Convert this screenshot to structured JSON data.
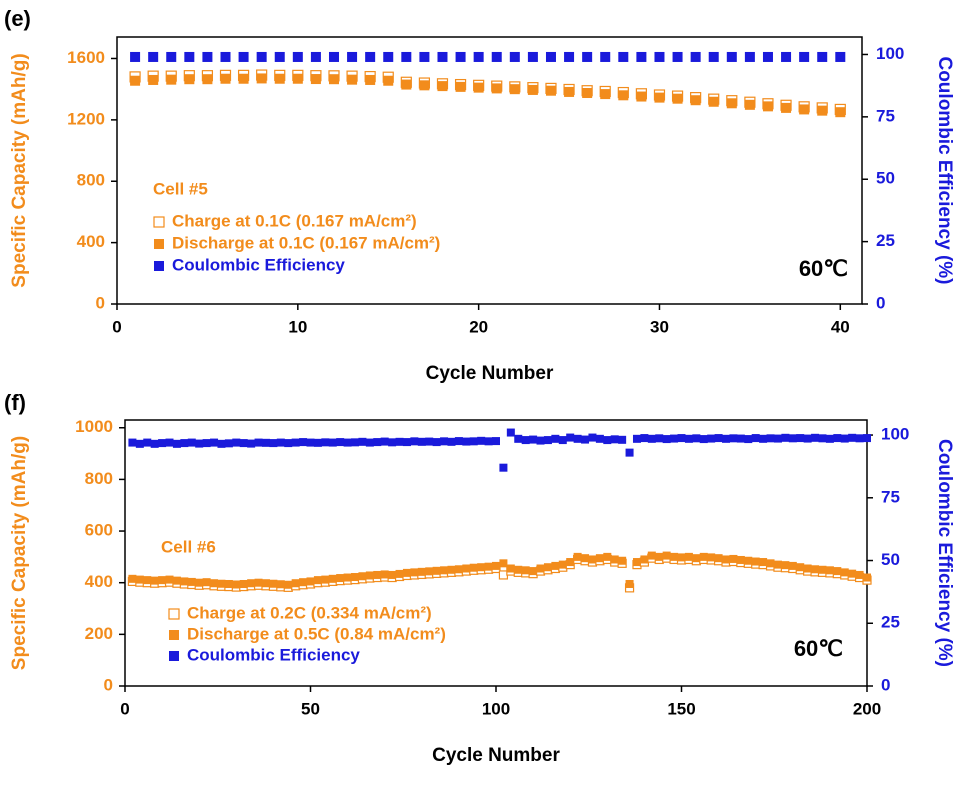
{
  "chart_data": [
    {
      "type": "scatter",
      "panel_label": "(e)",
      "annotation": "Cell #5",
      "temperature": "60℃",
      "xlabel": "Cycle Number",
      "ylabel": "Specific Capacity (mAh/g)",
      "y2label": "Coulombic Efficiency (%)",
      "xlim": [
        0,
        41.2
      ],
      "xticks": [
        0,
        10,
        20,
        30,
        40
      ],
      "ylim": [
        0,
        1740
      ],
      "yticks": [
        0,
        400,
        800,
        1200,
        1600
      ],
      "y2lim": [
        0,
        107
      ],
      "y2ticks": [
        0,
        25,
        50,
        75,
        100
      ],
      "legend": "lower left",
      "x": [
        1,
        2,
        3,
        4,
        5,
        6,
        7,
        8,
        9,
        10,
        11,
        12,
        13,
        14,
        15,
        16,
        17,
        18,
        19,
        20,
        21,
        22,
        23,
        24,
        25,
        26,
        27,
        28,
        29,
        30,
        31,
        32,
        33,
        34,
        35,
        36,
        37,
        38,
        39,
        40
      ],
      "series": [
        {
          "name": "Charge at 0.1C (0.167 mA/cm²)",
          "color": "#f28c1c",
          "marker": "open-square",
          "values": [
            1480,
            1485,
            1485,
            1488,
            1488,
            1490,
            1490,
            1492,
            1490,
            1490,
            1488,
            1487,
            1485,
            1482,
            1478,
            1445,
            1440,
            1435,
            1430,
            1425,
            1420,
            1415,
            1410,
            1405,
            1398,
            1390,
            1385,
            1378,
            1370,
            1362,
            1355,
            1345,
            1335,
            1325,
            1315,
            1305,
            1295,
            1285,
            1278,
            1268
          ]
        },
        {
          "name": "Discharge at 0.1C (0.167 mA/cm²)",
          "color": "#f28c1c",
          "marker": "square",
          "values": [
            1455,
            1460,
            1462,
            1465,
            1465,
            1468,
            1468,
            1470,
            1468,
            1468,
            1466,
            1465,
            1462,
            1460,
            1455,
            1430,
            1425,
            1420,
            1415,
            1410,
            1405,
            1400,
            1395,
            1390,
            1382,
            1375,
            1368,
            1360,
            1352,
            1345,
            1338,
            1328,
            1318,
            1308,
            1298,
            1288,
            1278,
            1268,
            1260,
            1250
          ]
        },
        {
          "name": "Coulombic Efficiency",
          "color": "#1a1adb",
          "marker": "square",
          "axis": "y2",
          "values": [
            99,
            99,
            99,
            99,
            99,
            99,
            99,
            99,
            99,
            99,
            99,
            99,
            99,
            99,
            99,
            99,
            99,
            99,
            99,
            99,
            99,
            99,
            99,
            99,
            99,
            99,
            99,
            99,
            99,
            99,
            99,
            99,
            99,
            99,
            99,
            99,
            99,
            99,
            99,
            99
          ]
        }
      ]
    },
    {
      "type": "scatter",
      "panel_label": "(f)",
      "annotation": "Cell #6",
      "temperature": "60℃",
      "xlabel": "Cycle Number",
      "ylabel": "Specific Capacity (mAh/g)",
      "y2label": "Coulombic Efficiency (%)",
      "xlim": [
        0,
        200
      ],
      "xticks": [
        0,
        50,
        100,
        150,
        200
      ],
      "ylim": [
        0,
        1030
      ],
      "yticks": [
        0,
        200,
        400,
        600,
        800,
        1000
      ],
      "y2lim": [
        0,
        106
      ],
      "y2ticks": [
        0,
        25,
        50,
        75,
        100
      ],
      "legend": "lower left",
      "x": [
        2,
        4,
        6,
        8,
        10,
        12,
        14,
        16,
        18,
        20,
        22,
        24,
        26,
        28,
        30,
        32,
        34,
        36,
        38,
        40,
        42,
        44,
        46,
        48,
        50,
        52,
        54,
        56,
        58,
        60,
        62,
        64,
        66,
        68,
        70,
        72,
        74,
        76,
        78,
        80,
        82,
        84,
        86,
        88,
        90,
        92,
        94,
        96,
        98,
        100,
        102,
        104,
        106,
        108,
        110,
        112,
        114,
        116,
        118,
        120,
        122,
        124,
        126,
        128,
        130,
        132,
        134,
        136,
        138,
        140,
        142,
        144,
        146,
        148,
        150,
        152,
        154,
        156,
        158,
        160,
        162,
        164,
        166,
        168,
        170,
        172,
        174,
        176,
        178,
        180,
        182,
        184,
        186,
        188,
        190,
        192,
        194,
        196,
        198,
        200
      ],
      "series": [
        {
          "name": "Charge at 0.2C (0.334 mA/cm²)",
          "color": "#f28c1c",
          "marker": "open-square",
          "values": [
            405,
            402,
            400,
            398,
            400,
            402,
            398,
            395,
            393,
            390,
            392,
            388,
            386,
            385,
            383,
            385,
            388,
            390,
            388,
            386,
            384,
            382,
            388,
            392,
            395,
            400,
            402,
            405,
            408,
            410,
            412,
            415,
            418,
            420,
            422,
            420,
            424,
            428,
            430,
            432,
            434,
            436,
            438,
            440,
            442,
            445,
            448,
            450,
            452,
            455,
            430,
            445,
            440,
            438,
            435,
            445,
            450,
            455,
            460,
            470,
            490,
            485,
            480,
            485,
            490,
            480,
            475,
            380,
            470,
            480,
            495,
            490,
            495,
            490,
            488,
            490,
            485,
            490,
            488,
            485,
            480,
            482,
            478,
            475,
            472,
            470,
            465,
            460,
            458,
            455,
            450,
            445,
            442,
            440,
            438,
            435,
            430,
            425,
            420,
            410
          ]
        },
        {
          "name": "Discharge at 0.5C (0.84 mA/cm²)",
          "color": "#f28c1c",
          "marker": "square",
          "values": [
            415,
            412,
            410,
            408,
            410,
            412,
            408,
            405,
            403,
            400,
            402,
            398,
            396,
            395,
            393,
            395,
            398,
            400,
            398,
            396,
            394,
            392,
            398,
            402,
            405,
            410,
            412,
            415,
            418,
            420,
            422,
            425,
            428,
            430,
            432,
            430,
            434,
            438,
            440,
            442,
            444,
            446,
            448,
            450,
            452,
            455,
            458,
            460,
            462,
            465,
            475,
            455,
            450,
            448,
            445,
            455,
            460,
            465,
            470,
            480,
            500,
            495,
            490,
            495,
            500,
            490,
            485,
            395,
            480,
            490,
            505,
            500,
            505,
            500,
            498,
            500,
            495,
            500,
            498,
            495,
            490,
            492,
            488,
            485,
            482,
            480,
            475,
            470,
            468,
            465,
            460,
            455,
            452,
            450,
            448,
            445,
            440,
            435,
            430,
            420
          ]
        },
        {
          "name": "Coulombic Efficiency",
          "color": "#1a1adb",
          "marker": "square",
          "axis": "y2",
          "values": [
            97,
            96.5,
            97,
            96.5,
            96.8,
            97,
            96.5,
            96.8,
            97,
            96.6,
            96.8,
            97,
            96.5,
            96.7,
            97,
            96.8,
            96.6,
            97,
            96.9,
            96.8,
            97,
            96.8,
            97,
            97.2,
            97,
            96.9,
            97.1,
            97,
            97.2,
            97,
            97.1,
            97.3,
            97,
            97.2,
            97.4,
            97.1,
            97.3,
            97.2,
            97.5,
            97.3,
            97.4,
            97.2,
            97.5,
            97.3,
            97.6,
            97.4,
            97.5,
            97.7,
            97.5,
            97.6,
            87,
            101,
            98.5,
            98,
            98.2,
            97.8,
            98,
            98.5,
            98,
            99,
            98.5,
            98.2,
            99,
            98.5,
            98,
            98.3,
            98.1,
            93,
            98.5,
            98.8,
            98.5,
            98.7,
            98.4,
            98.6,
            98.8,
            98.5,
            98.7,
            98.4,
            98.6,
            98.8,
            98.5,
            98.7,
            98.6,
            98.4,
            98.8,
            98.5,
            98.7,
            98.6,
            98.9,
            98.7,
            98.8,
            98.6,
            98.9,
            98.7,
            98.5,
            98.8,
            98.6,
            98.9,
            98.7,
            98.8
          ]
        }
      ]
    }
  ]
}
